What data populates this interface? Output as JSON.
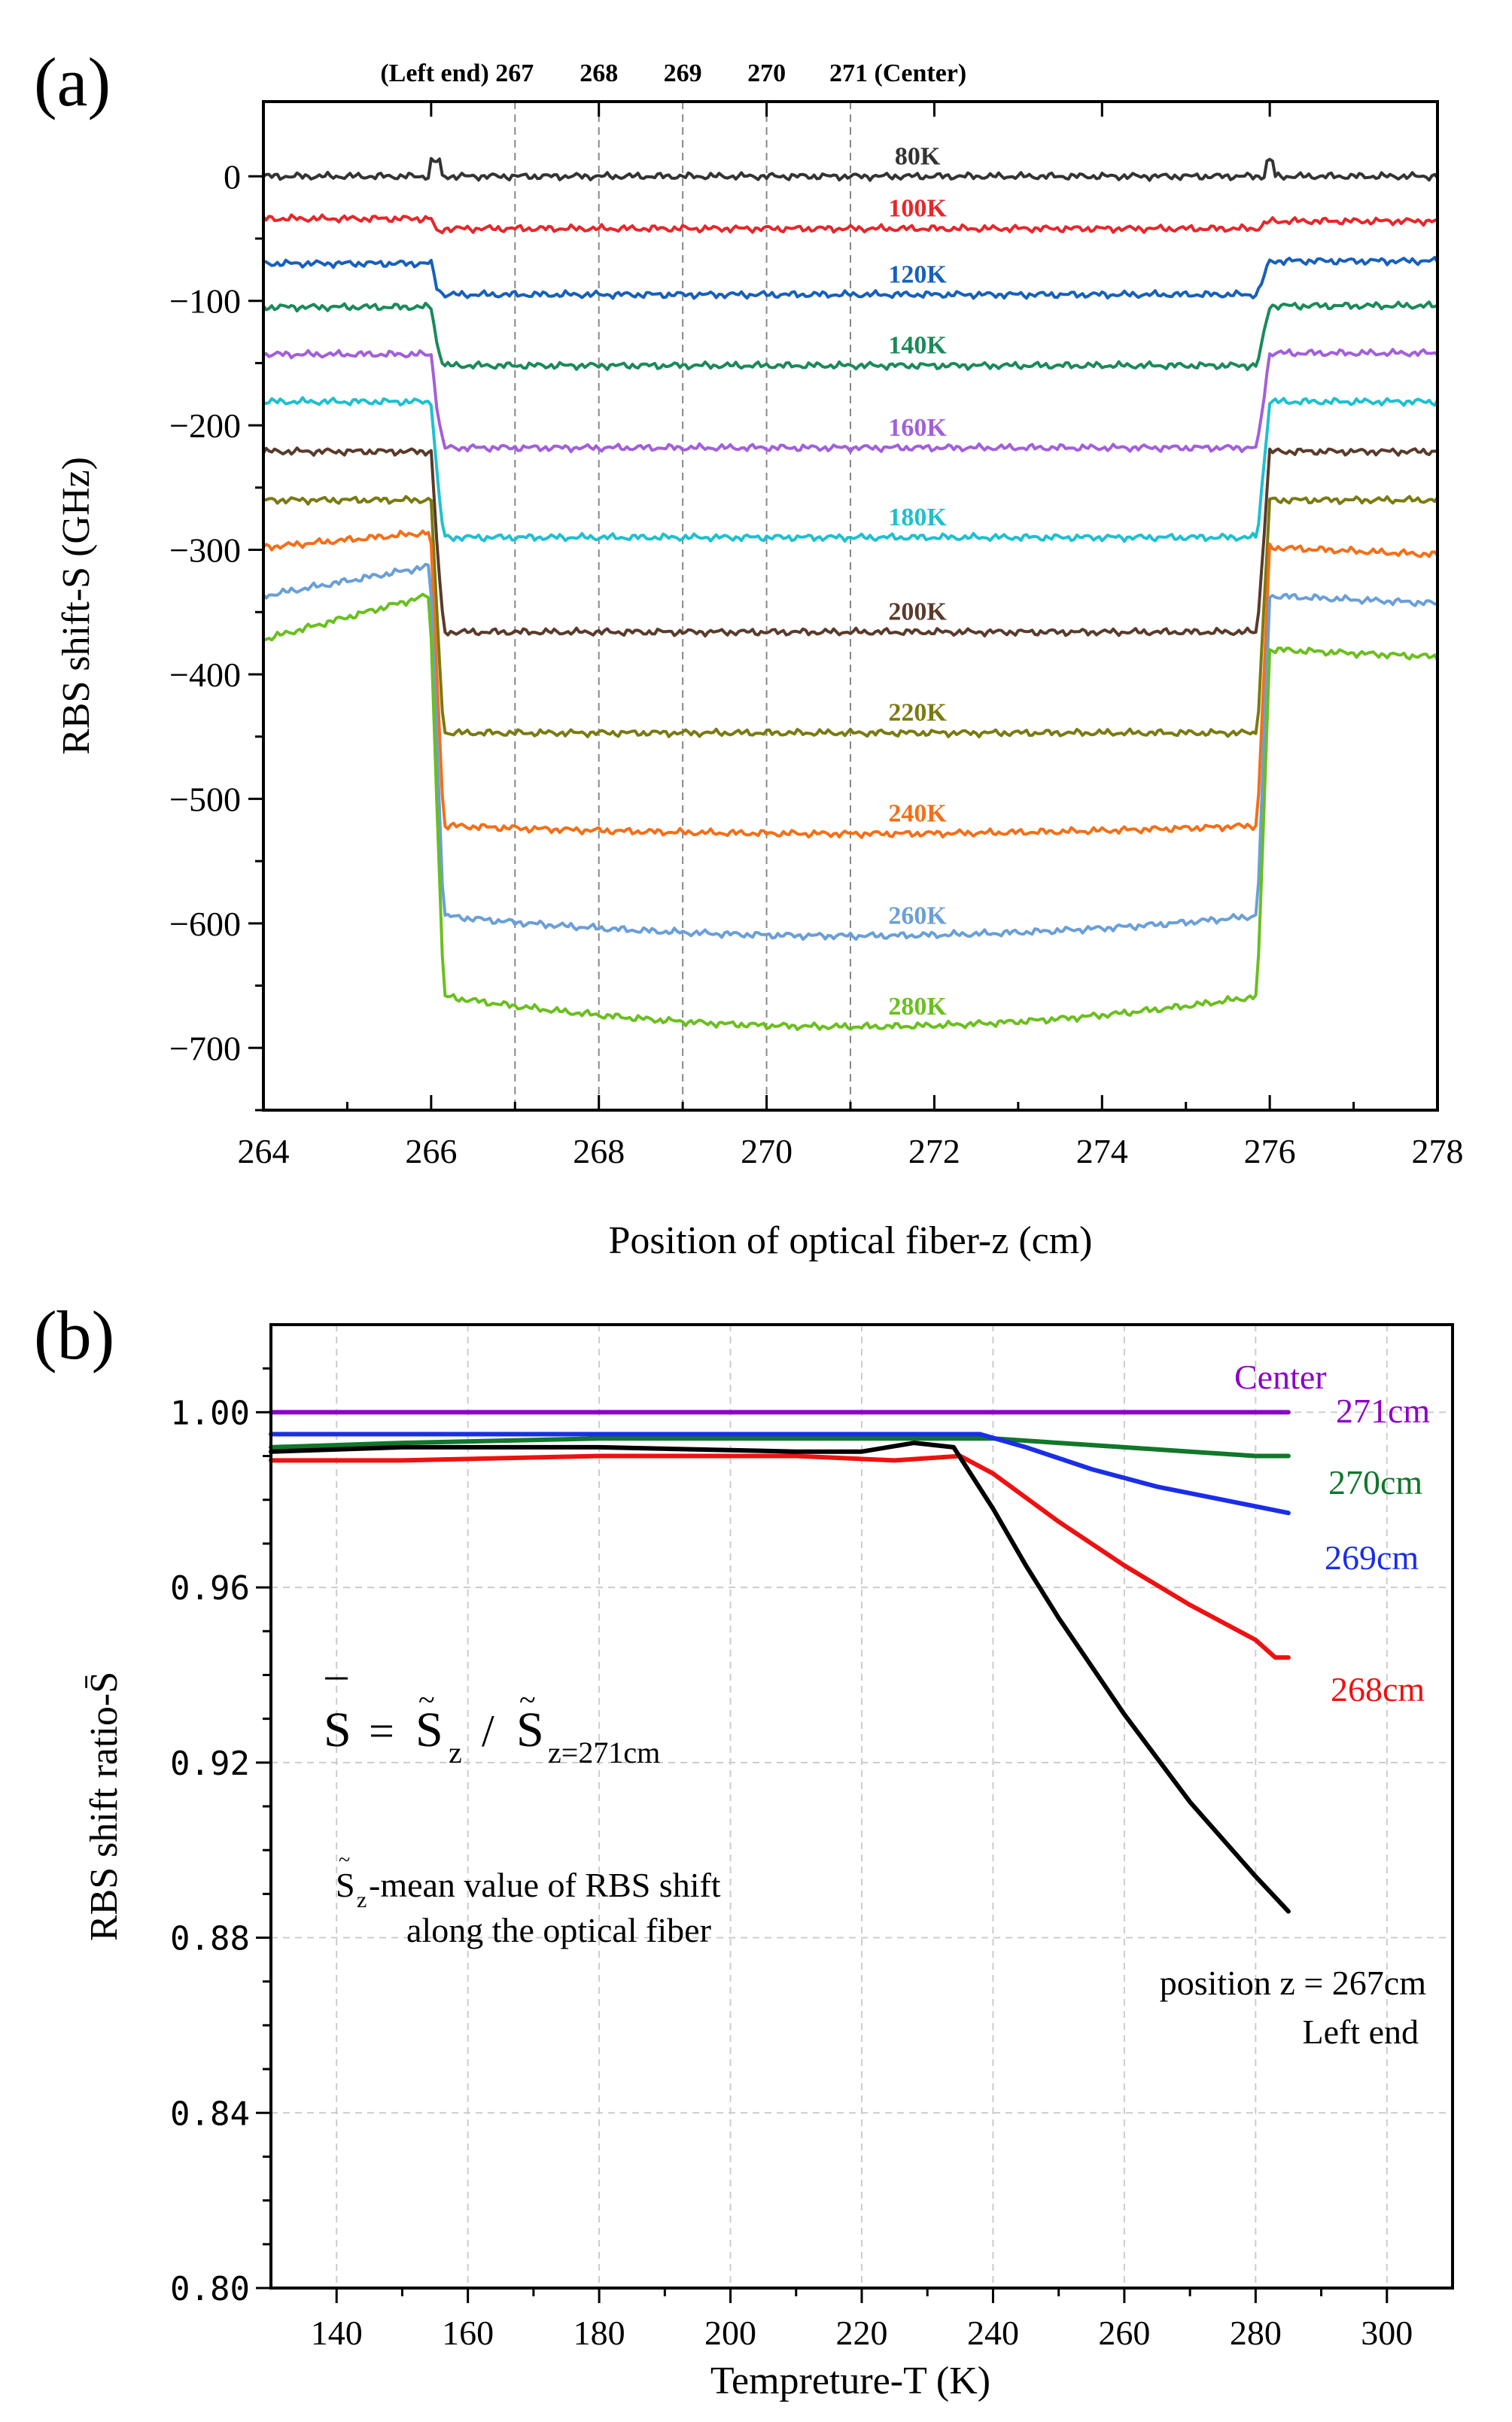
{
  "chart_data": [
    {
      "type": "line",
      "panel_label": "(a)",
      "xlabel": "Position of optical fiber-z (cm)",
      "ylabel": "RBS shift-S (GHz)",
      "xlim": [
        264,
        278
      ],
      "ylim": [
        -750,
        60
      ],
      "xticks": [
        264,
        266,
        268,
        270,
        272,
        274,
        276,
        278
      ],
      "xtick_labels": [
        "264",
        "266",
        "268",
        "270",
        "272",
        "274",
        "276",
        "278"
      ],
      "yticks": [
        0,
        -100,
        -200,
        -300,
        -400,
        -500,
        -600,
        -700
      ],
      "ytick_labels": [
        "0",
        "−100",
        "−200",
        "−300",
        "−400",
        "−500",
        "−600",
        "−700"
      ],
      "reference_lines": [
        {
          "x": 267,
          "label": "(Left end) 267"
        },
        {
          "x": 268,
          "label": "268"
        },
        {
          "x": 269,
          "label": "269"
        },
        {
          "x": 270,
          "label": "270"
        },
        {
          "x": 271,
          "label": "271 (Center)"
        }
      ],
      "series": [
        {
          "name": "80K",
          "color": "#333333",
          "outer": 0,
          "inner": 0,
          "left_outer": 0,
          "right_outer": 0
        },
        {
          "name": "100K",
          "color": "#e8262a",
          "outer": -35,
          "inner": -42,
          "left_outer": -34,
          "right_outer": -36
        },
        {
          "name": "120K",
          "color": "#1560bd",
          "outer": -70,
          "inner": -95,
          "left_outer": -70,
          "right_outer": -68
        },
        {
          "name": "140K",
          "color": "#1a8a5a",
          "outer": -105,
          "inner": -152,
          "left_outer": -105,
          "right_outer": -104
        },
        {
          "name": "160K",
          "color": "#a25fdb",
          "outer": -143,
          "inner": -218,
          "left_outer": -143,
          "right_outer": -142
        },
        {
          "name": "180K",
          "color": "#1ec0d0",
          "outer": -181,
          "inner": -290,
          "left_outer": -181,
          "right_outer": -181
        },
        {
          "name": "200K",
          "color": "#5a3a2a",
          "outer": -221,
          "inner": -366,
          "left_outer": -221,
          "right_outer": -221
        },
        {
          "name": "220K",
          "color": "#7a7a10",
          "outer": -260,
          "inner": -447,
          "left_outer": -260,
          "right_outer": -260
        },
        {
          "name": "240K",
          "color": "#f36f18",
          "outer": -298,
          "inner": -528,
          "left_outer": -298,
          "right_outer": -298
        },
        {
          "name": "260K",
          "color": "#6a9fd8",
          "outer": -337,
          "inner": -610,
          "left_outer": -337,
          "right_outer": -337
        },
        {
          "name": "280K",
          "color": "#6abf1e",
          "outer": -372,
          "inner": -683,
          "left_outer": -372,
          "right_outer": -380
        }
      ],
      "series_labels": [
        "80K",
        "100K",
        "120K",
        "140K",
        "160K",
        "180K",
        "200K",
        "220K",
        "240K",
        "260K",
        "280K"
      ]
    },
    {
      "type": "line",
      "panel_label": "(b)",
      "xlabel": "Tempreture-T (K)",
      "ylabel": "RBS shift ratio-S̄",
      "xlim": [
        130,
        310
      ],
      "ylim": [
        0.8,
        1.02
      ],
      "xticks": [
        140,
        160,
        180,
        200,
        220,
        240,
        260,
        280,
        300
      ],
      "xtick_labels": [
        "140",
        "160",
        "180",
        "200",
        "220",
        "240",
        "260",
        "280",
        "300"
      ],
      "yticks": [
        1.0,
        0.96,
        0.92,
        0.88,
        0.84,
        0.8
      ],
      "ytick_labels": [
        "1.00",
        "0.96",
        "0.92",
        "0.88",
        "0.84",
        "0.80"
      ],
      "series": [
        {
          "name": "271cm",
          "color": "#8b00c8",
          "x": [
            130,
            285
          ],
          "y": [
            1.0,
            1.0
          ]
        },
        {
          "name": "270cm",
          "color": "#11772a",
          "x": [
            130,
            150,
            180,
            210,
            230,
            240,
            250,
            260,
            270,
            280,
            285
          ],
          "y": [
            0.992,
            0.993,
            0.994,
            0.994,
            0.994,
            0.994,
            0.993,
            0.992,
            0.991,
            0.99,
            0.99
          ]
        },
        {
          "name": "269cm",
          "color": "#1a2ee8",
          "x": [
            130,
            150,
            180,
            210,
            230,
            238,
            245,
            255,
            265,
            275,
            285
          ],
          "y": [
            0.995,
            0.995,
            0.995,
            0.995,
            0.995,
            0.995,
            0.992,
            0.987,
            0.983,
            0.98,
            0.977
          ]
        },
        {
          "name": "268cm",
          "color": "#ee1111",
          "x": [
            130,
            150,
            180,
            210,
            225,
            235,
            240,
            250,
            260,
            270,
            280,
            283,
            285
          ],
          "y": [
            0.989,
            0.989,
            0.99,
            0.99,
            0.989,
            0.99,
            0.986,
            0.975,
            0.965,
            0.956,
            0.948,
            0.944,
            0.944
          ]
        },
        {
          "name": "267cm",
          "color": "#000000",
          "x": [
            130,
            150,
            180,
            210,
            220,
            228,
            234,
            240,
            245,
            250,
            260,
            270,
            280,
            285
          ],
          "y": [
            0.991,
            0.992,
            0.992,
            0.991,
            0.991,
            0.993,
            0.992,
            0.978,
            0.965,
            0.953,
            0.931,
            0.911,
            0.894,
            0.886
          ]
        }
      ]
    }
  ],
  "annotations_b": {
    "center": "Center",
    "label_271": "271cm",
    "label_270": "270cm",
    "label_269": "269cm",
    "label_268": "268cm",
    "position_line": "position z = 267cm",
    "left_end": "Left end",
    "formula_lhs": "S",
    "formula_eq": "=",
    "formula_s1": "S",
    "formula_sub1": "z",
    "formula_slash": "/",
    "formula_s2": "S",
    "formula_sub2": "z=271cm",
    "def_s": "S",
    "def_sub": "z",
    "def_rest": "-mean value of RBS shift",
    "def_line2": "along the optical fiber"
  }
}
